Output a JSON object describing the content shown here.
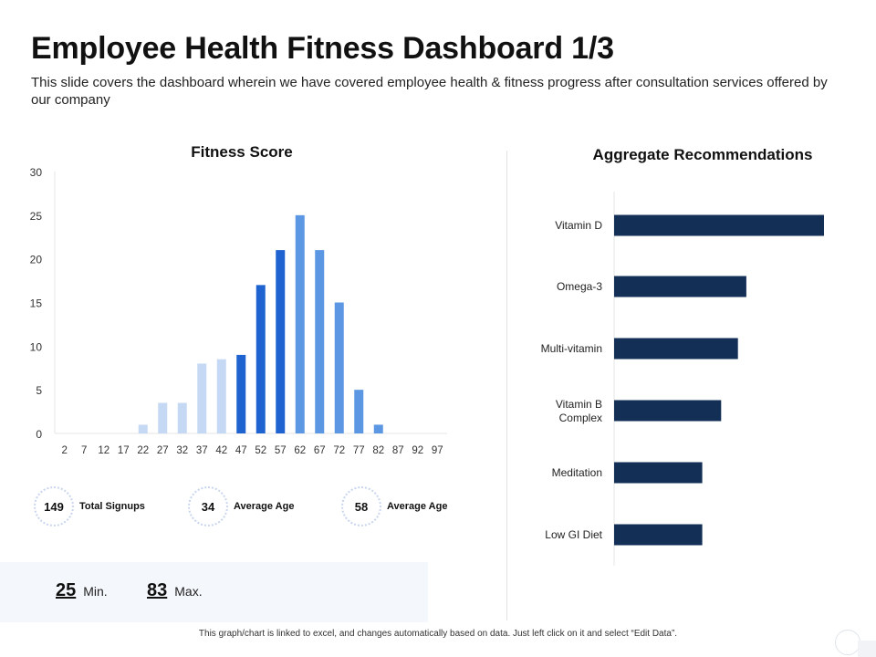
{
  "page": {
    "title": "Employee Health Fitness Dashboard 1/3",
    "subtitle": "This slide covers the dashboard wherein we have covered employee health & fitness progress after consultation services offered by our company",
    "footnote": "This graph/chart is linked to excel, and changes automatically based on data. Just left click on it and select “Edit Data”."
  },
  "stats": [
    {
      "value": "149",
      "label": "Total Signups"
    },
    {
      "value": "34",
      "label": "Average Age"
    },
    {
      "value": "58",
      "label": "Average Age"
    }
  ],
  "minmax": {
    "min_value": "25",
    "min_label": "Min.",
    "max_value": "83",
    "max_label": "Max."
  },
  "colors": {
    "light_blue": "#c5d9f4",
    "medium_blue": "#5b97e3",
    "dark_blue": "#1e63cf",
    "navy": "#132f55"
  },
  "chart_data": [
    {
      "type": "bar",
      "title": "Fitness Score",
      "categories": [
        "2",
        "7",
        "12",
        "17",
        "22",
        "27",
        "32",
        "37",
        "42",
        "47",
        "52",
        "57",
        "62",
        "67",
        "72",
        "77",
        "82",
        "87",
        "92",
        "97"
      ],
      "values": [
        0,
        0,
        0,
        0,
        1,
        3.5,
        3.5,
        8,
        8.5,
        9,
        17,
        21,
        25,
        21,
        15,
        5,
        1,
        0,
        0,
        0
      ],
      "bar_colors": [
        "light",
        "light",
        "light",
        "light",
        "light",
        "light",
        "light",
        "light",
        "light",
        "dark",
        "dark",
        "dark",
        "medium",
        "medium",
        "medium",
        "medium",
        "medium",
        "medium",
        "medium",
        "medium"
      ],
      "yticks": [
        0,
        5,
        10,
        15,
        20,
        25,
        30
      ],
      "ylim": [
        0,
        30
      ],
      "grid": false
    },
    {
      "type": "bar",
      "orientation": "horizontal",
      "title": "Aggregate Recommendations",
      "categories": [
        "Vitamin D",
        "Omega-3",
        "Multi-vitamin",
        "Vitamin B Complex",
        "Meditation",
        "Low GI Diet"
      ],
      "values": [
        100,
        63,
        59,
        51,
        42,
        42
      ],
      "xlim": [
        0,
        100
      ],
      "grid": false
    }
  ]
}
